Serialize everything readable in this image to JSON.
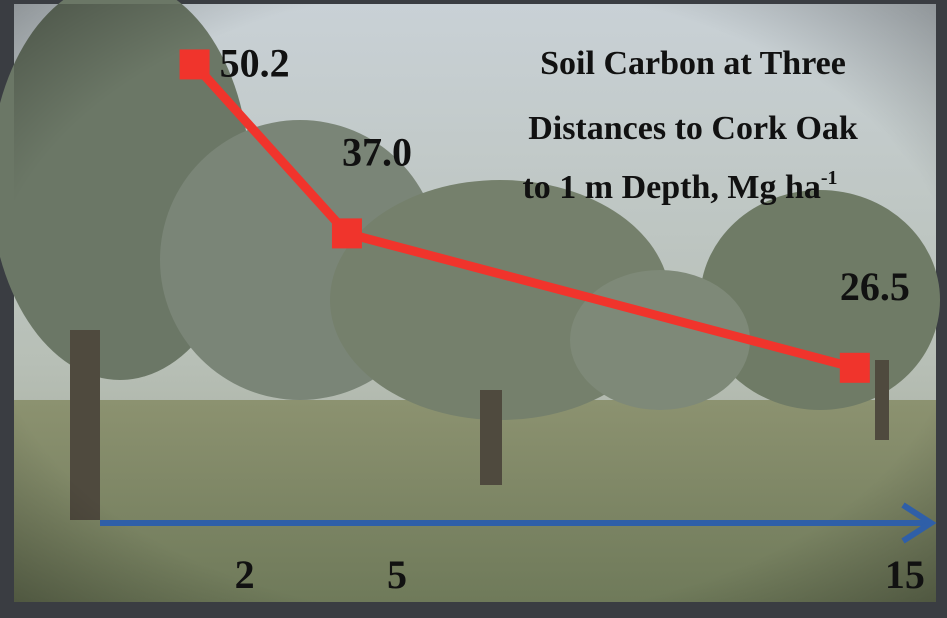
{
  "chart_data": {
    "type": "line",
    "title_lines": [
      "Soil Carbon at Three",
      "Distances to Cork Oak",
      "to 1 m Depth, Mg ha"
    ],
    "title_superscript": "-1",
    "x": [
      2,
      5,
      15
    ],
    "series": [
      {
        "color": "#f0342c",
        "values": [
          50.2,
          37.0,
          26.5
        ],
        "value_labels": [
          "50.2",
          "37.0",
          "26.5"
        ]
      }
    ],
    "xlim": [
      0,
      16.5
    ],
    "xticks": [
      2,
      5,
      15
    ],
    "x_axis_color": "#2f5fa8",
    "ylim": [
      20,
      55
    ]
  }
}
